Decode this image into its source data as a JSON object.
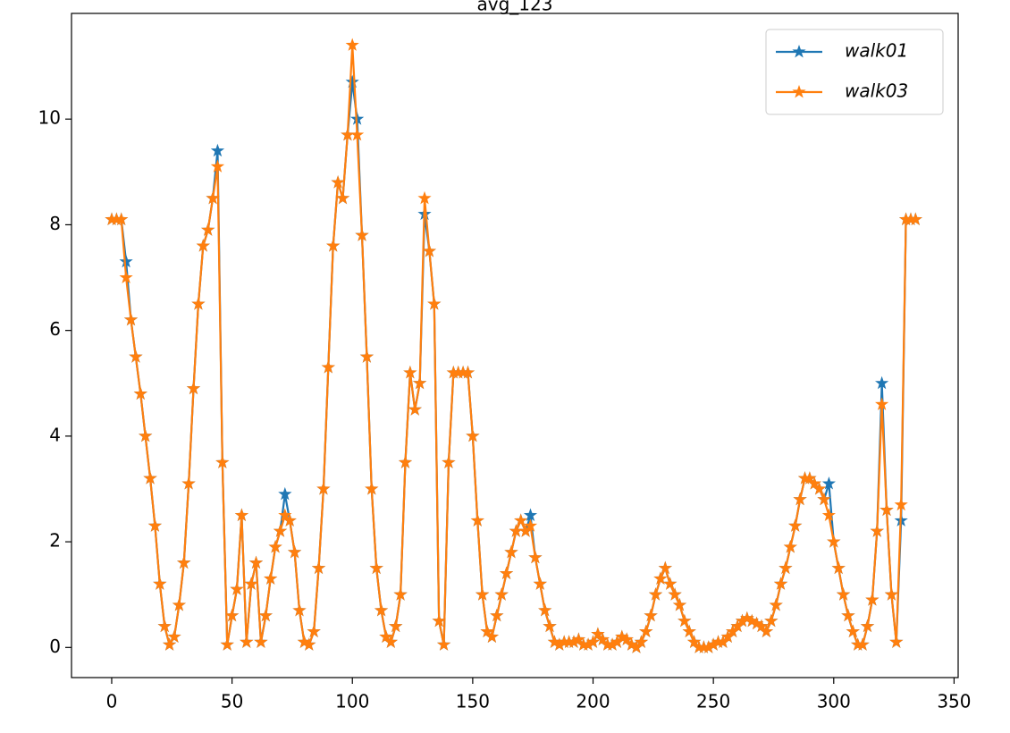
{
  "chart_data": {
    "type": "line",
    "title": "avg_123",
    "x": [
      0,
      2,
      4,
      6,
      8,
      10,
      12,
      14,
      16,
      18,
      20,
      22,
      24,
      26,
      28,
      30,
      32,
      34,
      36,
      38,
      40,
      42,
      44,
      46,
      48,
      50,
      52,
      54,
      56,
      58,
      60,
      62,
      64,
      66,
      68,
      70,
      72,
      74,
      76,
      78,
      80,
      82,
      84,
      86,
      88,
      90,
      92,
      94,
      96,
      98,
      100,
      102,
      104,
      106,
      108,
      110,
      112,
      114,
      116,
      118,
      120,
      122,
      124,
      126,
      128,
      130,
      132,
      134,
      136,
      138,
      140,
      142,
      144,
      146,
      148,
      150,
      152,
      154,
      156,
      158,
      160,
      162,
      164,
      166,
      168,
      170,
      172,
      174,
      176,
      178,
      180,
      182,
      184,
      186,
      188,
      190,
      192,
      194,
      196,
      198,
      200,
      202,
      204,
      206,
      208,
      210,
      212,
      214,
      216,
      218,
      220,
      222,
      224,
      226,
      228,
      230,
      232,
      234,
      236,
      238,
      240,
      242,
      244,
      246,
      248,
      250,
      252,
      254,
      256,
      258,
      260,
      262,
      264,
      266,
      268,
      270,
      272,
      274,
      276,
      278,
      280,
      282,
      284,
      286,
      288,
      290,
      292,
      294,
      296,
      298,
      300,
      302,
      304,
      306,
      308,
      310,
      312,
      314,
      316,
      318,
      320,
      322,
      324,
      326,
      328,
      330,
      332,
      334
    ],
    "series": [
      {
        "name": "walk01",
        "color": "#1f77b4",
        "values": [
          8.1,
          8.1,
          8.1,
          7.3,
          6.2,
          5.5,
          4.8,
          4.0,
          3.2,
          2.3,
          1.2,
          0.4,
          0.05,
          0.2,
          0.8,
          1.6,
          3.1,
          4.9,
          6.5,
          7.6,
          7.9,
          8.5,
          9.4,
          3.5,
          0.05,
          0.6,
          1.1,
          2.5,
          0.1,
          1.2,
          1.6,
          0.1,
          0.6,
          1.3,
          1.9,
          2.2,
          2.9,
          2.4,
          1.8,
          0.7,
          0.1,
          0.05,
          0.3,
          1.5,
          3.0,
          5.3,
          7.6,
          8.8,
          8.5,
          9.7,
          10.7,
          10.0,
          7.8,
          5.5,
          3.0,
          1.5,
          0.7,
          0.2,
          0.1,
          0.4,
          1.0,
          3.5,
          5.2,
          4.5,
          5.0,
          8.2,
          7.5,
          6.5,
          0.5,
          0.05,
          3.5,
          5.2,
          5.2,
          5.2,
          5.2,
          4.0,
          2.4,
          1.0,
          0.3,
          0.2,
          0.6,
          1.0,
          1.4,
          1.8,
          2.2,
          2.4,
          2.2,
          2.5,
          1.7,
          1.2,
          0.7,
          0.4,
          0.1,
          0.05,
          0.1,
          0.1,
          0.1,
          0.15,
          0.05,
          0.05,
          0.1,
          0.25,
          0.15,
          0.05,
          0.05,
          0.1,
          0.2,
          0.15,
          0.05,
          0,
          0.1,
          0.3,
          0.6,
          1.0,
          1.3,
          1.5,
          1.2,
          1.0,
          0.8,
          0.5,
          0.3,
          0.1,
          0,
          0,
          0,
          0.05,
          0.1,
          0.1,
          0.2,
          0.3,
          0.4,
          0.5,
          0.55,
          0.5,
          0.45,
          0.4,
          0.3,
          0.5,
          0.8,
          1.2,
          1.5,
          1.9,
          2.3,
          2.8,
          3.2,
          3.2,
          3.1,
          3.0,
          2.8,
          3.1,
          2.0,
          1.5,
          1.0,
          0.6,
          0.3,
          0.05,
          0.05,
          0.4,
          0.9,
          2.2,
          5.0,
          2.6,
          1.0,
          0.1,
          2.4,
          8.1,
          8.1,
          8.1
        ]
      },
      {
        "name": "walk03",
        "color": "#ff7f0e",
        "values": [
          8.1,
          8.1,
          8.1,
          7.0,
          6.2,
          5.5,
          4.8,
          4.0,
          3.2,
          2.3,
          1.2,
          0.4,
          0.05,
          0.2,
          0.8,
          1.6,
          3.1,
          4.9,
          6.5,
          7.6,
          7.9,
          8.5,
          9.1,
          3.5,
          0.05,
          0.6,
          1.1,
          2.5,
          0.1,
          1.2,
          1.6,
          0.1,
          0.6,
          1.3,
          1.9,
          2.2,
          2.5,
          2.4,
          1.8,
          0.7,
          0.1,
          0.05,
          0.3,
          1.5,
          3.0,
          5.3,
          7.6,
          8.8,
          8.5,
          9.7,
          11.4,
          9.7,
          7.8,
          5.5,
          3.0,
          1.5,
          0.7,
          0.2,
          0.1,
          0.4,
          1.0,
          3.5,
          5.2,
          4.5,
          5.0,
          8.5,
          7.5,
          6.5,
          0.5,
          0.05,
          3.5,
          5.2,
          5.2,
          5.2,
          5.2,
          4.0,
          2.4,
          1.0,
          0.3,
          0.2,
          0.6,
          1.0,
          1.4,
          1.8,
          2.2,
          2.4,
          2.2,
          2.3,
          1.7,
          1.2,
          0.7,
          0.4,
          0.1,
          0.05,
          0.1,
          0.1,
          0.1,
          0.15,
          0.05,
          0.05,
          0.1,
          0.25,
          0.15,
          0.05,
          0.05,
          0.1,
          0.2,
          0.15,
          0.05,
          0,
          0.1,
          0.3,
          0.6,
          1.0,
          1.3,
          1.5,
          1.2,
          1.0,
          0.8,
          0.5,
          0.3,
          0.1,
          0,
          0,
          0,
          0.05,
          0.1,
          0.1,
          0.2,
          0.3,
          0.4,
          0.5,
          0.55,
          0.5,
          0.45,
          0.4,
          0.3,
          0.5,
          0.8,
          1.2,
          1.5,
          1.9,
          2.3,
          2.8,
          3.2,
          3.2,
          3.1,
          3.0,
          2.8,
          2.5,
          2.0,
          1.5,
          1.0,
          0.6,
          0.3,
          0.05,
          0.05,
          0.4,
          0.9,
          2.2,
          4.6,
          2.6,
          1.0,
          0.1,
          2.7,
          8.1,
          8.1,
          8.1
        ]
      }
    ],
    "xlim": [
      -16.7,
      351.7
    ],
    "xticks": [
      0,
      50,
      100,
      150,
      200,
      250,
      300,
      350
    ],
    "ylim": [
      -0.57,
      12.0
    ],
    "yticks": [
      0,
      2,
      4,
      6,
      8,
      10
    ],
    "legend": "upper right",
    "marker": "star"
  }
}
